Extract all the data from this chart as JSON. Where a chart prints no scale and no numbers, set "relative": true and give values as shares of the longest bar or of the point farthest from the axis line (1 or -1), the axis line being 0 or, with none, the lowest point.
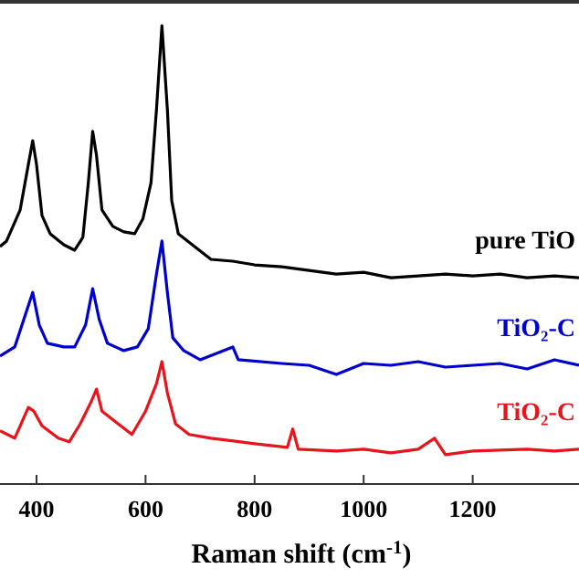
{
  "chart_data": {
    "type": "line",
    "relative": true,
    "xlabel": "Raman shift (cm$^{-1}$)",
    "xlim": [
      333,
      1395
    ],
    "xticks": [
      400,
      600,
      800,
      1000,
      1200
    ],
    "line_style": "solid",
    "series": [
      {
        "name": "pure TiO",
        "color": "#000000",
        "x": [
          333,
          345,
          370,
          385,
          393,
          400,
          410,
          425,
          450,
          470,
          485,
          495,
          503,
          510,
          520,
          540,
          560,
          580,
          595,
          610,
          620,
          630,
          640,
          648,
          660,
          690,
          720,
          760,
          800,
          850,
          900,
          950,
          1000,
          1050,
          1100,
          1150,
          1200,
          1250,
          1300,
          1350,
          1395
        ],
        "values": [
          0.518,
          0.53,
          0.598,
          0.697,
          0.749,
          0.697,
          0.586,
          0.546,
          0.522,
          0.51,
          0.538,
          0.657,
          0.769,
          0.717,
          0.598,
          0.562,
          0.55,
          0.546,
          0.578,
          0.657,
          0.817,
          1,
          0.817,
          0.618,
          0.546,
          0.518,
          0.49,
          0.486,
          0.478,
          0.474,
          0.466,
          0.458,
          0.462,
          0.45,
          0.454,
          0.458,
          0.454,
          0.458,
          0.45,
          0.454,
          0.45
        ]
      },
      {
        "name": "TiO₂-C",
        "color": "#0000cc",
        "x": [
          333,
          360,
          380,
          393,
          405,
          420,
          450,
          470,
          490,
          503,
          515,
          530,
          560,
          585,
          605,
          620,
          630,
          640,
          650,
          670,
          700,
          760,
          770,
          850,
          900,
          950,
          1000,
          1050,
          1100,
          1150,
          1200,
          1250,
          1300,
          1350,
          1395
        ],
        "values": [
          0.279,
          0.299,
          0.371,
          0.418,
          0.347,
          0.307,
          0.299,
          0.299,
          0.347,
          0.426,
          0.359,
          0.307,
          0.291,
          0.299,
          0.339,
          0.458,
          0.53,
          0.418,
          0.319,
          0.291,
          0.271,
          0.299,
          0.271,
          0.263,
          0.259,
          0.239,
          0.263,
          0.259,
          0.267,
          0.255,
          0.259,
          0.263,
          0.251,
          0.271,
          0.259
        ]
      },
      {
        "name": "TiO₂-C",
        "color": "#e8141c",
        "x": [
          333,
          360,
          385,
          395,
          410,
          440,
          460,
          480,
          500,
          510,
          520,
          550,
          575,
          600,
          620,
          630,
          640,
          655,
          680,
          720,
          800,
          860,
          870,
          880,
          950,
          1000,
          1050,
          1100,
          1130,
          1150,
          1200,
          1300,
          1350,
          1395
        ],
        "values": [
          0.116,
          0.1,
          0.167,
          0.159,
          0.127,
          0.1,
          0.092,
          0.131,
          0.179,
          0.207,
          0.159,
          0.131,
          0.108,
          0.159,
          0.219,
          0.267,
          0.199,
          0.131,
          0.108,
          0.1,
          0.088,
          0.08,
          0.12,
          0.076,
          0.072,
          0.076,
          0.068,
          0.076,
          0.1,
          0.064,
          0.072,
          0.076,
          0.072,
          0.076
        ]
      }
    ]
  }
}
